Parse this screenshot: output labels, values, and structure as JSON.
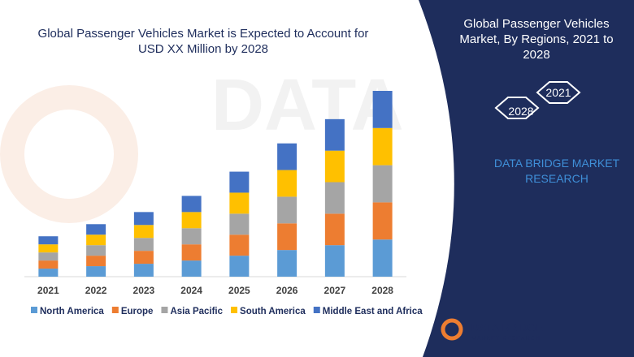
{
  "chart_data": {
    "type": "stacked-bar",
    "title": "Global Passenger Vehicles Market is Expected to Account for USD XX Million by 2028",
    "categories": [
      "2021",
      "2022",
      "2023",
      "2024",
      "2025",
      "2026",
      "2027",
      "2028"
    ],
    "series": [
      {
        "name": "North America",
        "color": "#5b9bd5",
        "values": [
          10,
          13,
          16,
          20,
          26,
          33,
          39,
          46
        ]
      },
      {
        "name": "Europe",
        "color": "#ed7d31",
        "values": [
          10,
          13,
          16,
          20,
          26,
          33,
          39,
          46
        ]
      },
      {
        "name": "Asia Pacific",
        "color": "#a5a5a5",
        "values": [
          10,
          13,
          16,
          20,
          26,
          33,
          39,
          46
        ]
      },
      {
        "name": "South America",
        "color": "#ffc000",
        "values": [
          10,
          13,
          16,
          20,
          26,
          33,
          39,
          46
        ]
      },
      {
        "name": "Middle East and Africa",
        "color": "#4472c4",
        "values": [
          10,
          13,
          16,
          20,
          26,
          33,
          39,
          46
        ]
      }
    ],
    "legend": "bottom"
  },
  "side_panel": {
    "title": "Global Passenger Vehicles Market, By Regions, 2021 to 2028",
    "hex_labels": [
      "2021",
      "2028"
    ],
    "brand": "DATA BRIDGE MARKET RESEARCH"
  },
  "logo": {
    "name": "DATA BRIDGE",
    "tagline": "MARKET RESEARCH"
  }
}
